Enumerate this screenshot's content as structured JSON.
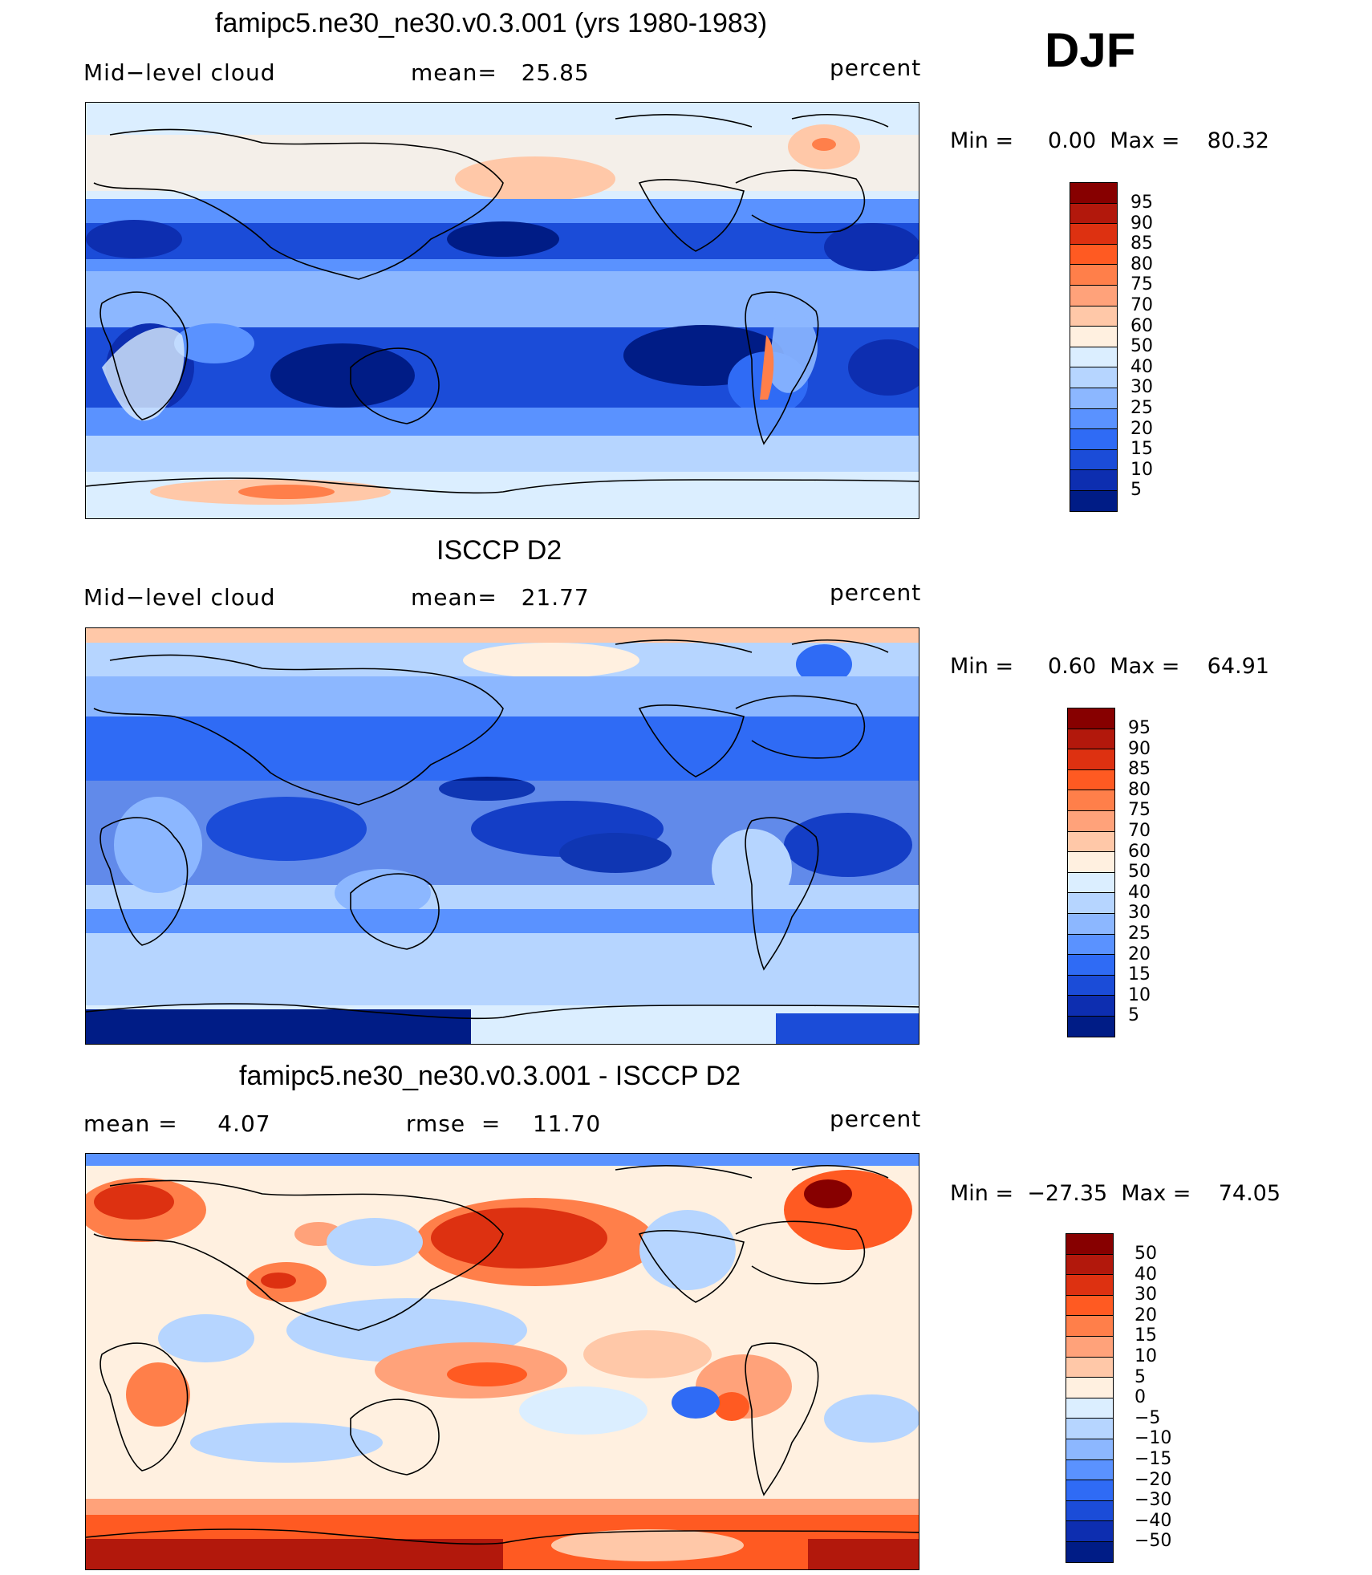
{
  "season": "DJF",
  "panels": [
    {
      "title": "famipc5.ne30_ne30.v0.3.001 (yrs 1980-1983)",
      "left_label": "Mid−level cloud",
      "center_label": "mean=   25.85",
      "right_label": "percent",
      "minmax": "Min =     0.00  Max =    80.32",
      "colorbar": {
        "labels": [
          "95",
          "90",
          "85",
          "80",
          "75",
          "70",
          "60",
          "50",
          "40",
          "30",
          "25",
          "20",
          "15",
          "10",
          "5"
        ],
        "colors": [
          "#870000",
          "#b2180c",
          "#dd3111",
          "#ff5a22",
          "#ff7f4a",
          "#ffa27a",
          "#ffc8a8",
          "#fff0e0",
          "#dbeeff",
          "#b6d5ff",
          "#8cb7ff",
          "#5a92ff",
          "#2f6bf5",
          "#1b4cd8",
          "#0d2eb0",
          "#001c86"
        ]
      }
    },
    {
      "title": "ISCCP D2",
      "left_label": "Mid−level cloud",
      "center_label": "mean=   21.77",
      "right_label": "percent",
      "minmax": "Min =     0.60  Max =    64.91",
      "colorbar": {
        "labels": [
          "95",
          "90",
          "85",
          "80",
          "75",
          "70",
          "60",
          "50",
          "40",
          "30",
          "25",
          "20",
          "15",
          "10",
          "5"
        ],
        "colors": [
          "#870000",
          "#b2180c",
          "#dd3111",
          "#ff5a22",
          "#ff7f4a",
          "#ffa27a",
          "#ffc8a8",
          "#fff0e0",
          "#dbeeff",
          "#b6d5ff",
          "#8cb7ff",
          "#5a92ff",
          "#2f6bf5",
          "#1b4cd8",
          "#0d2eb0",
          "#001c86"
        ]
      }
    },
    {
      "title": "famipc5.ne30_ne30.v0.3.001 - ISCCP D2",
      "left_label": "mean =     4.07",
      "center_label": "rmse  =    11.70",
      "right_label": "percent",
      "minmax": "Min =  −27.35  Max =    74.05",
      "colorbar": {
        "labels": [
          "50",
          "40",
          "30",
          "20",
          "15",
          "10",
          "5",
          "0",
          "−5",
          "−10",
          "−15",
          "−20",
          "−30",
          "−40",
          "−50"
        ],
        "colors": [
          "#870000",
          "#b2180c",
          "#dd3111",
          "#ff5a22",
          "#ff7f4a",
          "#ffa27a",
          "#ffc8a8",
          "#fff0e0",
          "#dbeeff",
          "#b6d5ff",
          "#8cb7ff",
          "#5a92ff",
          "#2f6bf5",
          "#1b4cd8",
          "#0d2eb0",
          "#001c86"
        ]
      }
    }
  ]
}
